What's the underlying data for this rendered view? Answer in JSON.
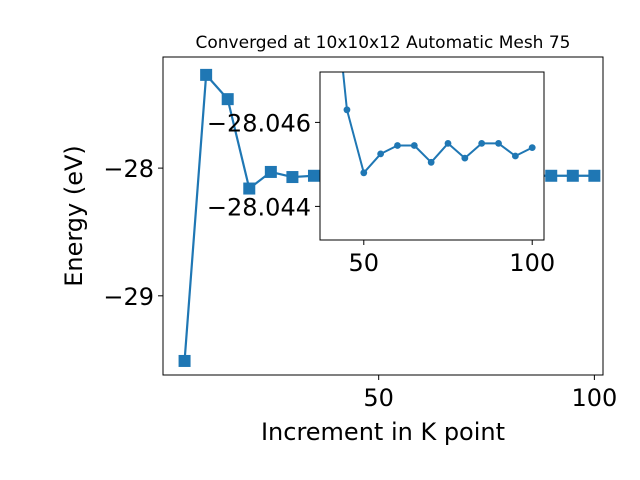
{
  "chart_data": [
    {
      "type": "line",
      "title": "Converged at 10x10x12 Automatic Mesh 75",
      "xlabel": "Increment in K point",
      "ylabel": "Energy (eV)",
      "xlim": [
        0,
        102
      ],
      "ylim": [
        -29.62,
        -27.13
      ],
      "xticks": [
        50,
        100
      ],
      "yticks": [
        -29,
        -28
      ],
      "ytick_labels": [
        "−29",
        "−28"
      ],
      "grid": false,
      "color": "#1f77b4",
      "marker": "square",
      "x": [
        5,
        10,
        15,
        20,
        25,
        30,
        35,
        40,
        45,
        50,
        55,
        60,
        65,
        70,
        75,
        80,
        85,
        90,
        95,
        100
      ],
      "y": [
        -29.51,
        -27.27,
        -27.46,
        -28.16,
        -28.03,
        -28.07,
        -28.06,
        -28.06,
        -28.06,
        -28.06,
        -28.06,
        -28.06,
        -28.06,
        -28.06,
        -28.06,
        -28.06,
        -28.06,
        -28.06,
        -28.06,
        -28.06
      ]
    },
    {
      "type": "line",
      "title": "",
      "xlabel": "",
      "ylabel": "",
      "xlim": [
        37,
        103.5
      ],
      "ylim": [
        -28.0432,
        -28.0472
      ],
      "xticks": [
        50,
        100
      ],
      "yticks": [
        -28.046,
        -28.044
      ],
      "ytick_labels": [
        "−28.046",
        "−28.044"
      ],
      "grid": false,
      "color": "#1f77b4",
      "marker": "circle",
      "x": [
        40,
        45,
        50,
        55,
        60,
        65,
        70,
        75,
        80,
        85,
        90,
        95,
        100
      ],
      "y": [
        -28.0502,
        -28.0463,
        -28.0448,
        -28.04525,
        -28.04545,
        -28.04545,
        -28.04505,
        -28.0455,
        -28.04515,
        -28.0455,
        -28.0455,
        -28.0452,
        -28.0454
      ]
    }
  ]
}
